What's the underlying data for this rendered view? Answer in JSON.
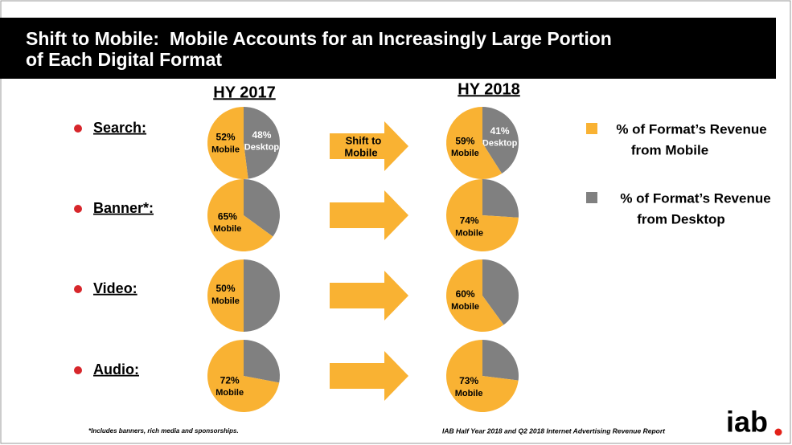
{
  "title": [
    "Shift to Mobile:  Mobile Accounts for an Increasingly Large Portion",
    "of Each Digital Format"
  ],
  "columns": [
    "HY 2017",
    "HY 2018"
  ],
  "rows": [
    "Search:",
    "Banner*:",
    "Video:",
    "Audio:"
  ],
  "arrow_label": [
    "Shift to",
    "Mobile"
  ],
  "legend": [
    {
      "lines": [
        "% of Format’s Revenue",
        "from Mobile"
      ],
      "color": "#f9b233"
    },
    {
      "lines": [
        "% of Format’s Revenue",
        "from Desktop"
      ],
      "color": "#808080"
    }
  ],
  "footnote": "*Includes banners, rich media and sponsorships.",
  "source": "IAB Half Year 2018 and Q2 2018 Internet Advertising Revenue Report",
  "logo": "iab",
  "chart_data": [
    {
      "type": "pie",
      "categories": [
        "Mobile",
        "Desktop"
      ],
      "values": [
        52,
        48
      ],
      "value_labels": [
        "52%",
        "48%"
      ],
      "colors": [
        "#f9b233",
        "#808080"
      ]
    },
    {
      "type": "pie",
      "categories": [
        "Mobile",
        "Desktop"
      ],
      "values": [
        59,
        41
      ],
      "value_labels": [
        "59%",
        "41%"
      ],
      "colors": [
        "#f9b233",
        "#808080"
      ]
    },
    {
      "type": "pie",
      "categories": [
        "Mobile",
        null
      ],
      "values": [
        65,
        35
      ],
      "value_labels": [
        "65%",
        null
      ],
      "colors": [
        "#f9b233",
        "#808080"
      ]
    },
    {
      "type": "pie",
      "categories": [
        "Mobile",
        null
      ],
      "values": [
        74,
        26
      ],
      "value_labels": [
        "74%",
        null
      ],
      "colors": [
        "#f9b233",
        "#808080"
      ]
    },
    {
      "type": "pie",
      "categories": [
        "Mobile",
        null
      ],
      "values": [
        50,
        50
      ],
      "value_labels": [
        "50%",
        null
      ],
      "colors": [
        "#f9b233",
        "#808080"
      ]
    },
    {
      "type": "pie",
      "categories": [
        "Mobile",
        null
      ],
      "values": [
        60,
        40
      ],
      "value_labels": [
        "60%",
        null
      ],
      "colors": [
        "#f9b233",
        "#808080"
      ]
    },
    {
      "type": "pie",
      "categories": [
        "Mobile",
        null
      ],
      "values": [
        72,
        28
      ],
      "value_labels": [
        "72%",
        null
      ],
      "colors": [
        "#f9b233",
        "#808080"
      ]
    },
    {
      "type": "pie",
      "categories": [
        "Mobile",
        null
      ],
      "values": [
        73,
        27
      ],
      "value_labels": [
        "73%",
        null
      ],
      "colors": [
        "#f9b233",
        "#808080"
      ]
    }
  ]
}
